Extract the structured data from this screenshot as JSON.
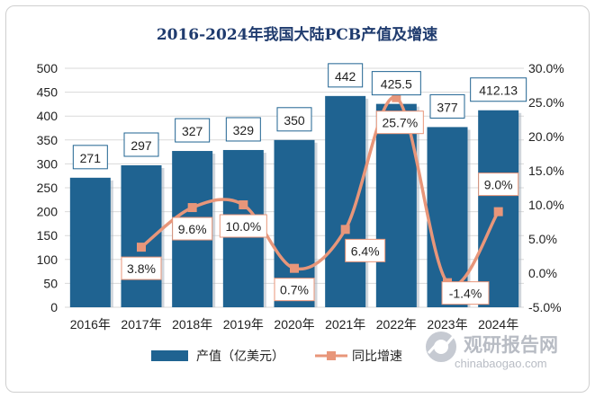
{
  "chart_data": {
    "type": "bar",
    "title": "2016-2024年我国大陆PCB产值及增速",
    "categories": [
      "2016年",
      "2017年",
      "2018年",
      "2019年",
      "2020年",
      "2021年",
      "2022年",
      "2023年",
      "2024年"
    ],
    "series": [
      {
        "name": "产值（亿美元）",
        "type": "bar",
        "axis": "left",
        "color": "#1f6391",
        "values": [
          271,
          297,
          327,
          329,
          350,
          442,
          425.5,
          377,
          412.13
        ],
        "labels": [
          "271",
          "297",
          "327",
          "329",
          "350",
          "442",
          "425.5",
          "377",
          "412.13"
        ]
      },
      {
        "name": "同比增速",
        "type": "line",
        "axis": "right",
        "smooth": true,
        "color": "#e8967a",
        "values": [
          null,
          3.8,
          9.6,
          10.0,
          0.7,
          6.4,
          25.7,
          -1.4,
          9.0
        ],
        "labels": [
          "",
          "3.8%",
          "9.6%",
          "10.0%",
          "0.7%",
          "6.4%",
          "25.7%",
          "-1.4%",
          "9.0%"
        ]
      }
    ],
    "y_left": {
      "min": 0,
      "max": 500,
      "step": 50,
      "ticks": [
        "0",
        "50",
        "100",
        "150",
        "200",
        "250",
        "300",
        "350",
        "400",
        "450",
        "500"
      ]
    },
    "y_right": {
      "min": -5,
      "max": 30,
      "step": 5,
      "ticks": [
        "-5.0%",
        "0.0%",
        "5.0%",
        "10.0%",
        "15.0%",
        "20.0%",
        "25.0%",
        "30.0%"
      ]
    },
    "grid": true,
    "legend_position": "bottom"
  },
  "watermark": {
    "name": "观研报告网",
    "url": "chinabaogao.com"
  }
}
